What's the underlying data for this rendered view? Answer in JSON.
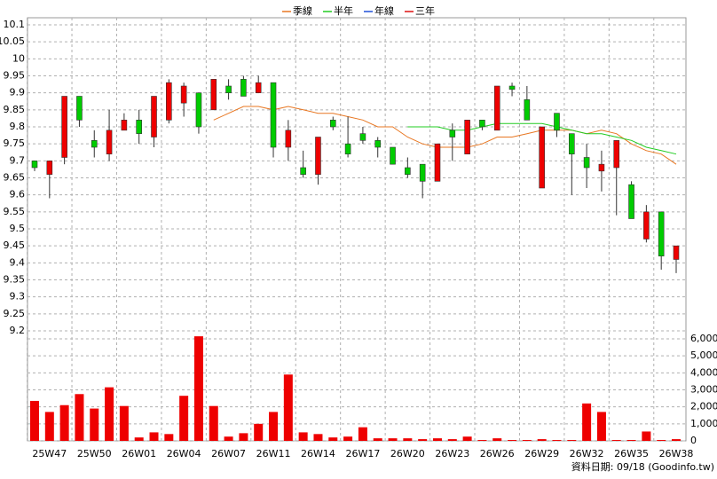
{
  "chart_data": [
    {
      "type": "candlestick",
      "categories": [
        null,
        "25W47",
        null,
        null,
        "25W50",
        null,
        null,
        "26W01",
        null,
        null,
        "26W04",
        null,
        null,
        "26W07",
        null,
        null,
        "26W11",
        null,
        null,
        "26W14",
        null,
        null,
        "26W17",
        null,
        null,
        "26W20",
        null,
        null,
        "26W23",
        null,
        null,
        "26W26",
        null,
        null,
        "26W29",
        null,
        null,
        "26W32",
        null,
        null,
        "26W35",
        null,
        null,
        "26W38"
      ],
      "open": [
        9.7,
        9.66,
        9.71,
        9.89,
        9.76,
        9.72,
        9.79,
        9.82,
        9.77,
        9.82,
        9.87,
        9.9,
        9.85,
        9.92,
        9.94,
        9.9,
        9.93,
        9.74,
        9.68,
        9.66,
        9.82,
        9.75,
        9.78,
        9.76,
        9.74,
        9.68,
        9.69,
        9.64,
        9.79,
        9.72,
        9.82,
        9.79,
        9.92,
        9.88,
        9.62,
        9.84,
        9.78,
        9.71,
        9.67,
        9.68,
        9.63,
        9.47,
        9.55,
        9.41
      ],
      "high": [
        9.7,
        9.7,
        9.89,
        9.89,
        9.79,
        9.85,
        9.84,
        9.85,
        9.89,
        9.94,
        9.93,
        9.9,
        9.94,
        9.94,
        9.95,
        9.95,
        9.93,
        9.82,
        9.73,
        9.77,
        9.83,
        9.83,
        9.8,
        9.77,
        9.74,
        9.71,
        9.69,
        9.75,
        9.81,
        9.82,
        9.82,
        9.92,
        9.93,
        9.92,
        9.8,
        9.84,
        9.78,
        9.75,
        9.73,
        9.76,
        9.64,
        9.57,
        9.55,
        9.45
      ],
      "low": [
        9.67,
        9.59,
        9.69,
        9.8,
        9.71,
        9.7,
        9.79,
        9.75,
        9.74,
        9.81,
        9.83,
        9.78,
        9.85,
        9.88,
        9.89,
        9.9,
        9.71,
        9.7,
        9.65,
        9.63,
        9.79,
        9.71,
        9.75,
        9.71,
        9.69,
        9.65,
        9.59,
        9.64,
        9.7,
        9.72,
        9.79,
        9.79,
        9.89,
        9.82,
        9.62,
        9.77,
        9.6,
        9.62,
        9.61,
        9.54,
        9.53,
        9.46,
        9.38,
        9.37
      ],
      "close": [
        9.68,
        9.7,
        9.89,
        9.82,
        9.74,
        9.79,
        9.82,
        9.78,
        9.89,
        9.93,
        9.92,
        9.8,
        9.94,
        9.9,
        9.89,
        9.93,
        9.74,
        9.79,
        9.66,
        9.77,
        9.8,
        9.72,
        9.76,
        9.74,
        9.69,
        9.66,
        9.64,
        9.75,
        9.77,
        9.82,
        9.8,
        9.92,
        9.91,
        9.82,
        9.8,
        9.79,
        9.72,
        9.68,
        9.69,
        9.76,
        9.53,
        9.55,
        9.42,
        9.45
      ],
      "up_color": "#ee0000",
      "down_color": "#00cc00",
      "series": [
        {
          "name": "季線",
          "color": "#e87722",
          "values": [
            null,
            null,
            null,
            null,
            null,
            null,
            null,
            null,
            null,
            null,
            null,
            null,
            9.82,
            9.84,
            9.86,
            9.86,
            9.85,
            9.86,
            9.85,
            9.84,
            9.84,
            9.83,
            9.82,
            9.8,
            9.8,
            9.77,
            9.75,
            9.74,
            9.74,
            9.74,
            9.75,
            9.77,
            9.77,
            9.78,
            9.79,
            9.79,
            9.79,
            9.78,
            9.79,
            9.78,
            9.75,
            9.73,
            9.72,
            9.69
          ]
        },
        {
          "name": "半年",
          "color": "#22cc22",
          "values": [
            null,
            null,
            null,
            null,
            null,
            null,
            null,
            null,
            null,
            null,
            null,
            null,
            null,
            null,
            null,
            null,
            null,
            null,
            null,
            null,
            null,
            null,
            null,
            null,
            null,
            9.8,
            9.8,
            9.8,
            9.79,
            9.79,
            9.8,
            9.81,
            9.81,
            9.81,
            9.81,
            9.8,
            9.79,
            9.78,
            9.78,
            9.77,
            9.76,
            9.74,
            9.73,
            9.72
          ]
        },
        {
          "name": "年線",
          "color": "#1f4fd8",
          "values": [
            null,
            null,
            null,
            null,
            null,
            null,
            null,
            null,
            null,
            null,
            null,
            null,
            null,
            null,
            null,
            null,
            null,
            null,
            null,
            null,
            null,
            null,
            null,
            null,
            null,
            null,
            null,
            null,
            null,
            null,
            null,
            null,
            null,
            null,
            null,
            null,
            null,
            null,
            null,
            null,
            null,
            null,
            null,
            null
          ]
        },
        {
          "name": "三年",
          "color": "#dd1111",
          "values": [
            null,
            null,
            null,
            null,
            null,
            null,
            null,
            null,
            null,
            null,
            null,
            null,
            null,
            null,
            null,
            null,
            null,
            null,
            null,
            null,
            null,
            null,
            null,
            null,
            null,
            null,
            null,
            null,
            null,
            null,
            null,
            null,
            null,
            null,
            null,
            null,
            null,
            null,
            null,
            null,
            null,
            null,
            null,
            null
          ]
        }
      ],
      "ylim": [
        9.2,
        10.1
      ],
      "yticks": [
        9.2,
        9.25,
        9.3,
        9.35,
        9.4,
        9.45,
        9.5,
        9.55,
        9.6,
        9.65,
        9.7,
        9.75,
        9.8,
        9.85,
        9.9,
        9.95,
        10,
        10.05,
        10.1
      ],
      "grid": true,
      "legend": "top",
      "footnote": "資料日期: 09/18  (Goodinfo.tw)"
    },
    {
      "type": "bar",
      "values": [
        2350,
        1700,
        2100,
        2750,
        1900,
        3150,
        2050,
        200,
        500,
        400,
        2650,
        6150,
        2050,
        250,
        450,
        1000,
        1700,
        3900,
        500,
        400,
        200,
        250,
        800,
        150,
        150,
        150,
        100,
        150,
        100,
        250,
        50,
        150,
        50,
        50,
        100,
        50,
        50,
        2200,
        1700,
        50,
        50,
        550,
        50,
        100
      ],
      "color": "#ee0000",
      "ylim": [
        0,
        6000
      ],
      "yticks": [
        0,
        {
          "value": 1000,
          "label": "1,000"
        },
        {
          "value": 2000,
          "label": "2,000"
        },
        {
          "value": 3000,
          "label": "3,000"
        },
        {
          "value": 4000,
          "label": "4,000"
        },
        {
          "value": 5000,
          "label": "5,000"
        },
        {
          "value": 6000,
          "label": "6,000"
        }
      ],
      "grid": true
    }
  ]
}
